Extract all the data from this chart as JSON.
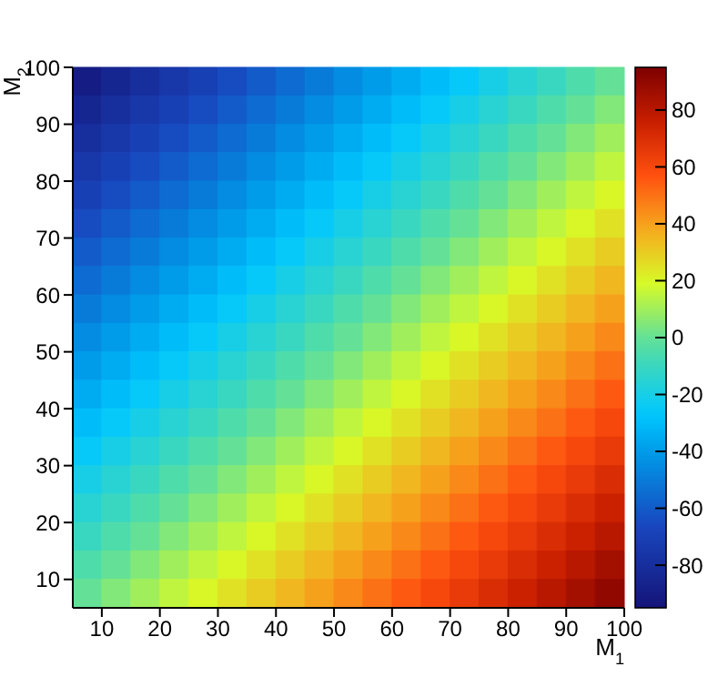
{
  "chart_data": {
    "type": "heatmap",
    "xlabel": "M$_{1}$",
    "ylabel": "M$_{2}$",
    "xlim": [
      5,
      100
    ],
    "ylim": [
      5,
      100
    ],
    "xticks": [
      10,
      20,
      30,
      40,
      50,
      60,
      70,
      80,
      90,
      100
    ],
    "yticks": [
      10,
      20,
      30,
      40,
      50,
      60,
      70,
      80,
      90,
      100
    ],
    "clim": [
      -95,
      95
    ],
    "cticks": [
      -80,
      -60,
      -40,
      -20,
      0,
      20,
      40,
      60,
      80
    ],
    "cells": [
      [
        -90,
        -85,
        -80,
        -75,
        -70,
        -65,
        -60,
        -55,
        -50,
        -45,
        -40,
        -35,
        -30,
        -25,
        -20,
        -15,
        -10,
        -5,
        0
      ],
      [
        -85,
        -80,
        -75,
        -70,
        -65,
        -60,
        -55,
        -50,
        -45,
        -40,
        -35,
        -30,
        -25,
        -20,
        -15,
        -10,
        -5,
        0,
        5
      ],
      [
        -80,
        -75,
        -70,
        -65,
        -60,
        -55,
        -50,
        -45,
        -40,
        -35,
        -30,
        -25,
        -20,
        -15,
        -10,
        -5,
        0,
        5,
        10
      ],
      [
        -75,
        -70,
        -65,
        -60,
        -55,
        -50,
        -45,
        -40,
        -35,
        -30,
        -25,
        -20,
        -15,
        -10,
        -5,
        0,
        5,
        10,
        15
      ],
      [
        -70,
        -65,
        -60,
        -55,
        -50,
        -45,
        -40,
        -35,
        -30,
        -25,
        -20,
        -15,
        -10,
        -5,
        0,
        5,
        10,
        15,
        20
      ],
      [
        -65,
        -60,
        -55,
        -50,
        -45,
        -40,
        -35,
        -30,
        -25,
        -20,
        -15,
        -10,
        -5,
        0,
        5,
        10,
        15,
        20,
        25
      ],
      [
        -60,
        -55,
        -50,
        -45,
        -40,
        -35,
        -30,
        -25,
        -20,
        -15,
        -10,
        -5,
        0,
        5,
        10,
        15,
        20,
        25,
        30
      ],
      [
        -55,
        -50,
        -45,
        -40,
        -35,
        -30,
        -25,
        -20,
        -15,
        -10,
        -5,
        0,
        5,
        10,
        15,
        20,
        25,
        30,
        35
      ],
      [
        -50,
        -45,
        -40,
        -35,
        -30,
        -25,
        -20,
        -15,
        -10,
        -5,
        0,
        5,
        10,
        15,
        20,
        25,
        30,
        35,
        40
      ],
      [
        -45,
        -40,
        -35,
        -30,
        -25,
        -20,
        -15,
        -10,
        -5,
        0,
        5,
        10,
        15,
        20,
        25,
        30,
        35,
        40,
        45
      ],
      [
        -40,
        -35,
        -30,
        -25,
        -20,
        -15,
        -10,
        -5,
        0,
        5,
        10,
        15,
        20,
        25,
        30,
        35,
        40,
        45,
        50
      ],
      [
        -35,
        -30,
        -25,
        -20,
        -15,
        -10,
        -5,
        0,
        5,
        10,
        15,
        20,
        25,
        30,
        35,
        40,
        45,
        50,
        55
      ],
      [
        -30,
        -25,
        -20,
        -15,
        -10,
        -5,
        0,
        5,
        10,
        15,
        20,
        25,
        30,
        35,
        40,
        45,
        50,
        55,
        60
      ],
      [
        -25,
        -20,
        -15,
        -10,
        -5,
        0,
        5,
        10,
        15,
        20,
        25,
        30,
        35,
        40,
        45,
        50,
        55,
        60,
        65
      ],
      [
        -20,
        -15,
        -10,
        -5,
        0,
        5,
        10,
        15,
        20,
        25,
        30,
        35,
        40,
        45,
        50,
        55,
        60,
        65,
        70
      ],
      [
        -15,
        -10,
        -5,
        0,
        5,
        10,
        15,
        20,
        25,
        30,
        35,
        40,
        45,
        50,
        55,
        60,
        65,
        70,
        75
      ],
      [
        -10,
        -5,
        0,
        5,
        10,
        15,
        20,
        25,
        30,
        35,
        40,
        45,
        50,
        55,
        60,
        65,
        70,
        75,
        80
      ],
      [
        -5,
        0,
        5,
        10,
        15,
        20,
        25,
        30,
        35,
        40,
        45,
        50,
        55,
        60,
        65,
        70,
        75,
        80,
        85
      ],
      [
        0,
        5,
        10,
        15,
        20,
        25,
        30,
        35,
        40,
        45,
        50,
        55,
        60,
        65,
        70,
        75,
        80,
        85,
        90
      ]
    ]
  }
}
